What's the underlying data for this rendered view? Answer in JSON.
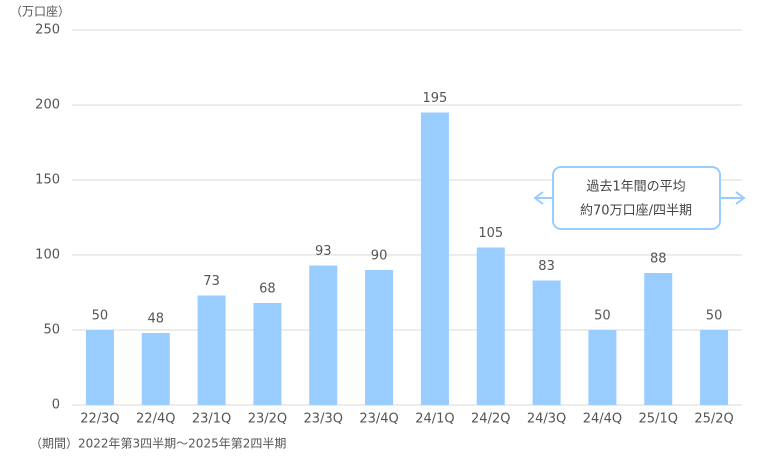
{
  "chart_data": {
    "type": "bar",
    "y_label": "（万口座）",
    "categories": [
      "22/3Q",
      "22/4Q",
      "23/1Q",
      "23/2Q",
      "23/3Q",
      "23/4Q",
      "24/1Q",
      "24/2Q",
      "24/3Q",
      "24/4Q",
      "25/1Q",
      "25/2Q"
    ],
    "values": [
      50,
      48,
      73,
      68,
      93,
      90,
      195,
      105,
      83,
      50,
      88,
      50
    ],
    "color": "#99ccff",
    "ylim": [
      0,
      250
    ],
    "yticks": [
      0,
      50,
      100,
      150,
      200,
      250
    ],
    "grid": true,
    "annotation": [
      "過去1年間の平均",
      "約70万口座/四半期"
    ],
    "footnote": "（期間）2022年第3四半期～2025年第2四半期"
  }
}
